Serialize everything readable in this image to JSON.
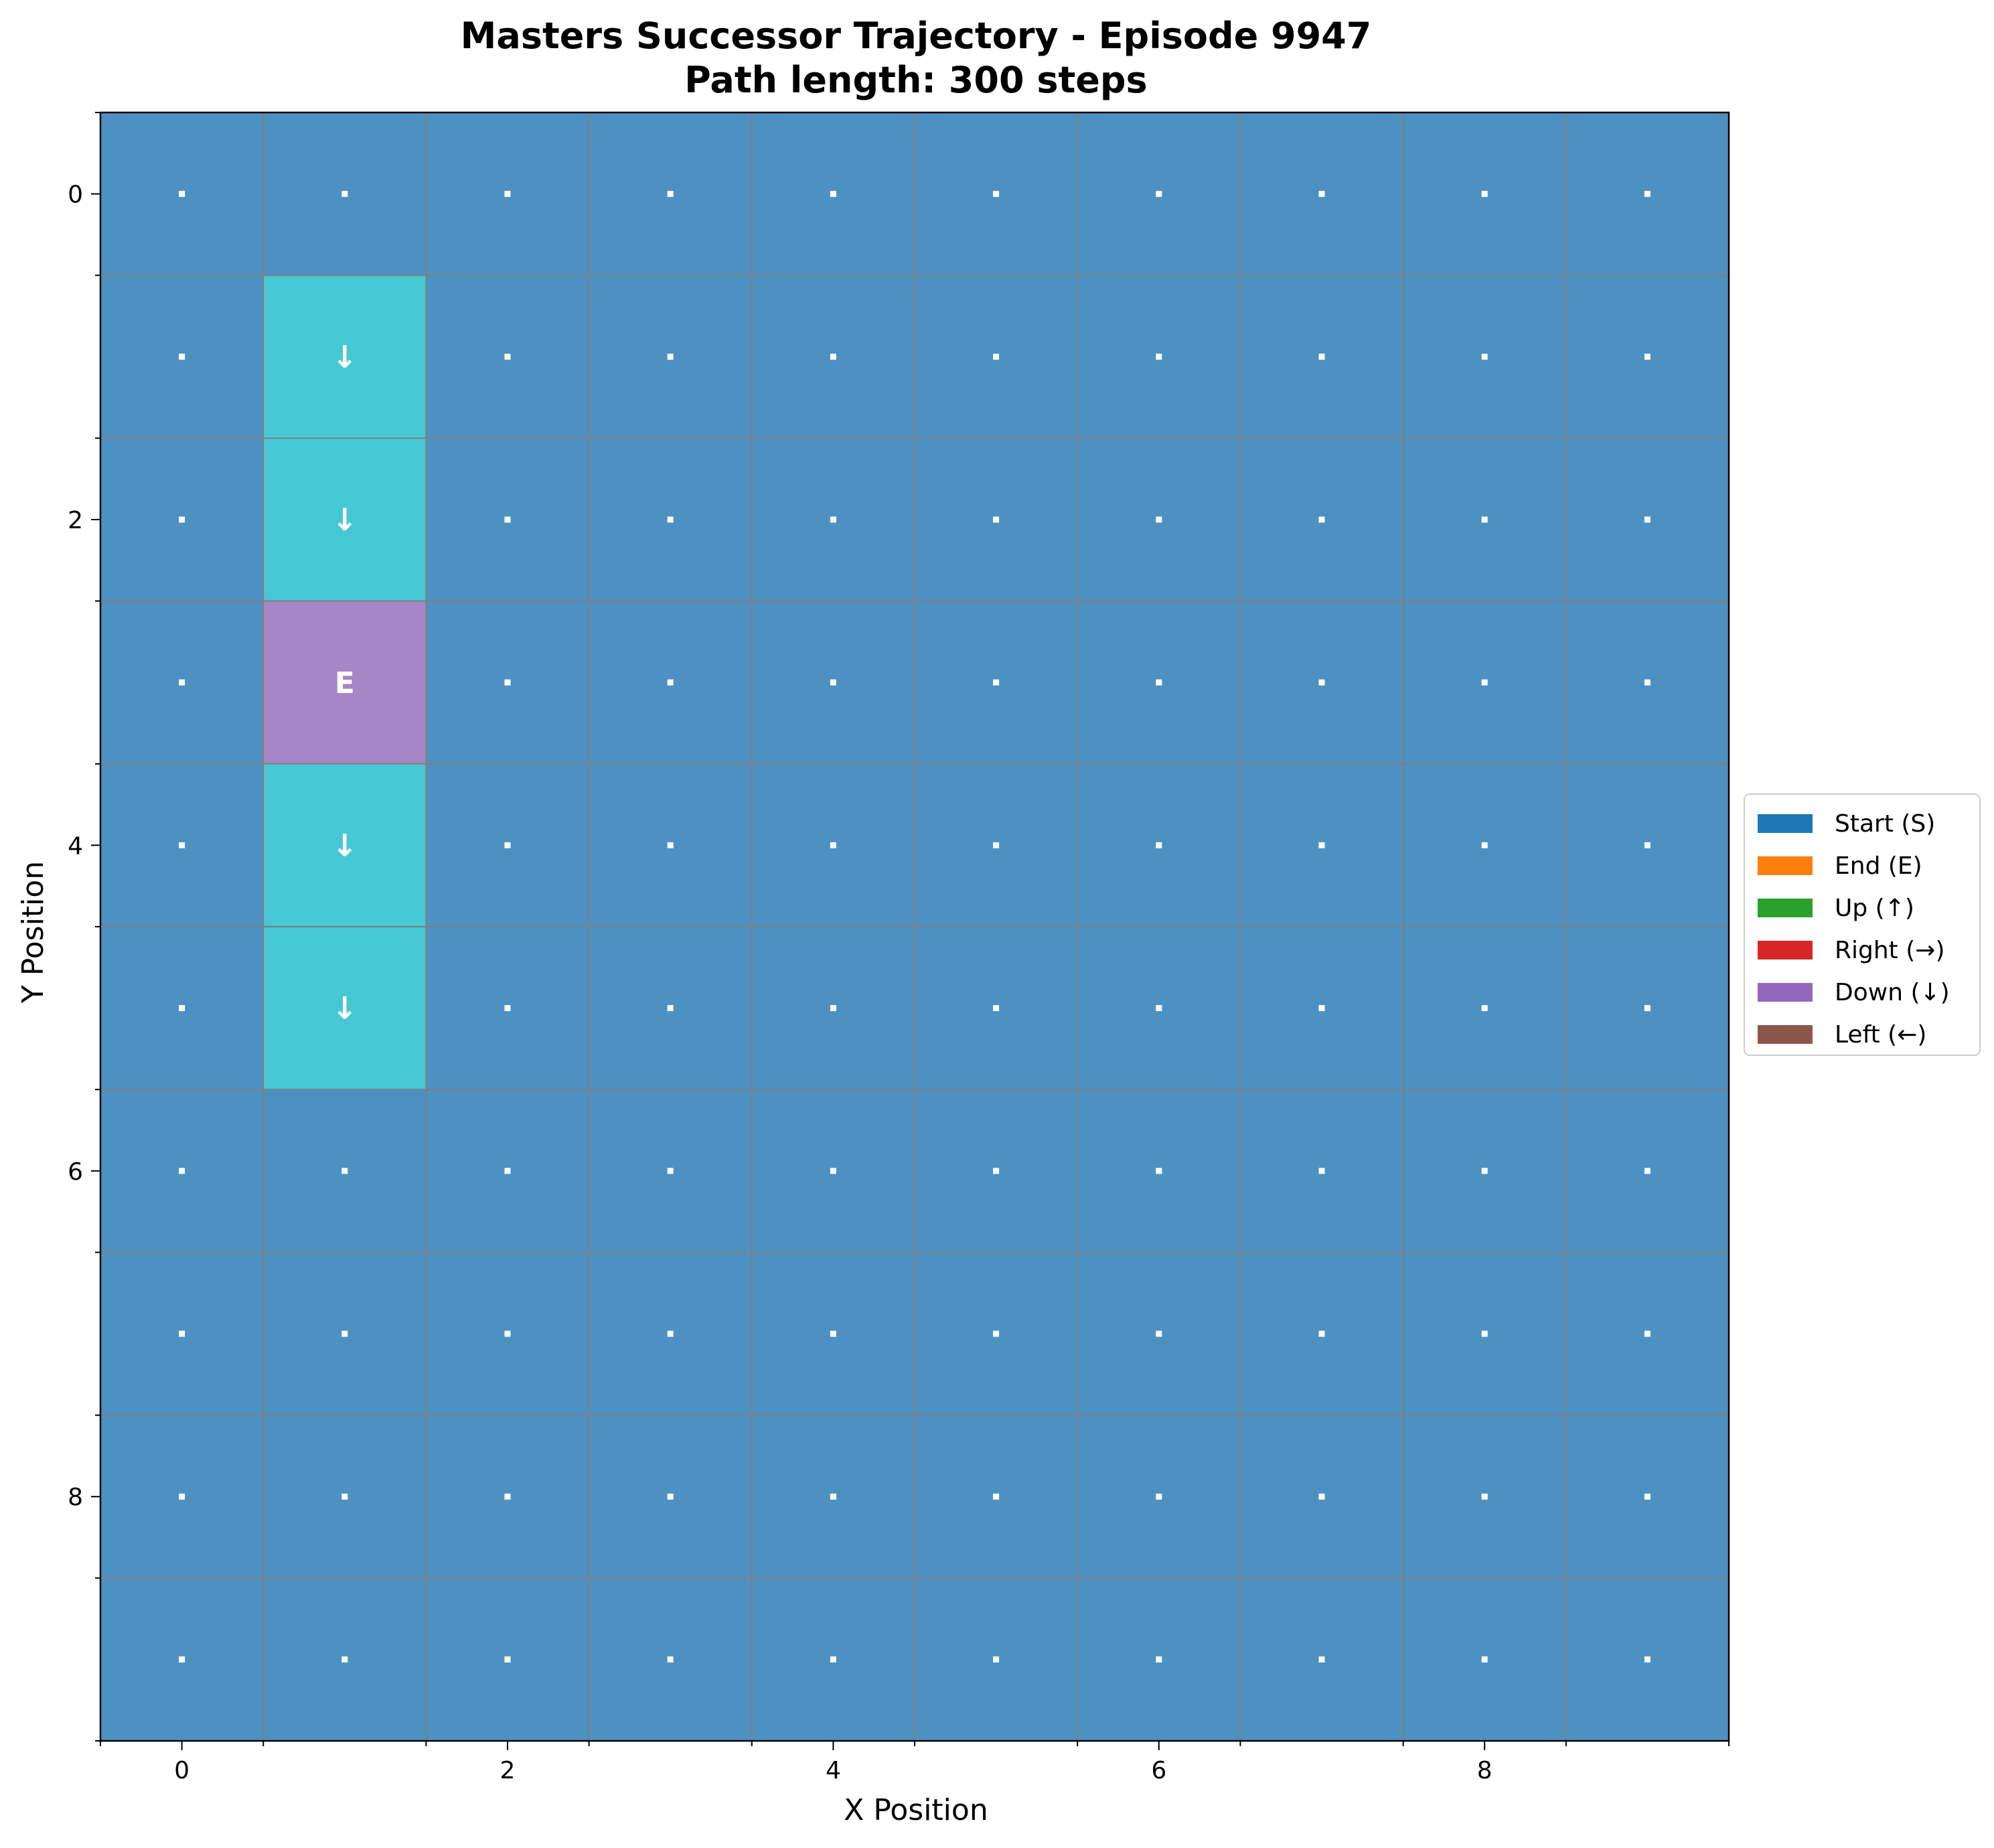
{
  "chart_data": {
    "type": "heatmap",
    "title_line1": "Masters Successor Trajectory - Episode 9947",
    "title_line2": "Path length: 300 steps",
    "xlabel": "X Position",
    "ylabel": "Y Position",
    "grid_size": 10,
    "x_ticks": [
      0,
      2,
      4,
      6,
      8
    ],
    "y_ticks": [
      0,
      2,
      4,
      6,
      8
    ],
    "xlim": [
      -0.5,
      9.5
    ],
    "ylim": [
      9.5,
      -0.5
    ],
    "grid": true,
    "background_color": "#4d91c2",
    "empty_cell_marker": ".",
    "path_cells": [
      {
        "x": 1,
        "y": 1,
        "label": "↓",
        "color": "#45c8d4"
      },
      {
        "x": 1,
        "y": 2,
        "label": "↓",
        "color": "#45c8d4"
      },
      {
        "x": 1,
        "y": 3,
        "label": "E",
        "color": "#a786c7"
      },
      {
        "x": 1,
        "y": 4,
        "label": "↓",
        "color": "#45c8d4"
      },
      {
        "x": 1,
        "y": 5,
        "label": "↓",
        "color": "#45c8d4"
      }
    ],
    "legend": {
      "placement": "center-right",
      "entries": [
        {
          "label": "Start (S)",
          "color": "#1f77b4"
        },
        {
          "label": "End (E)",
          "color": "#ff7f0e"
        },
        {
          "label": "Up (↑)",
          "color": "#2ca02c"
        },
        {
          "label": "Right (→)",
          "color": "#d62728"
        },
        {
          "label": "Down (↓)",
          "color": "#9467bd"
        },
        {
          "label": "Left (←)",
          "color": "#8c564b"
        }
      ]
    }
  }
}
